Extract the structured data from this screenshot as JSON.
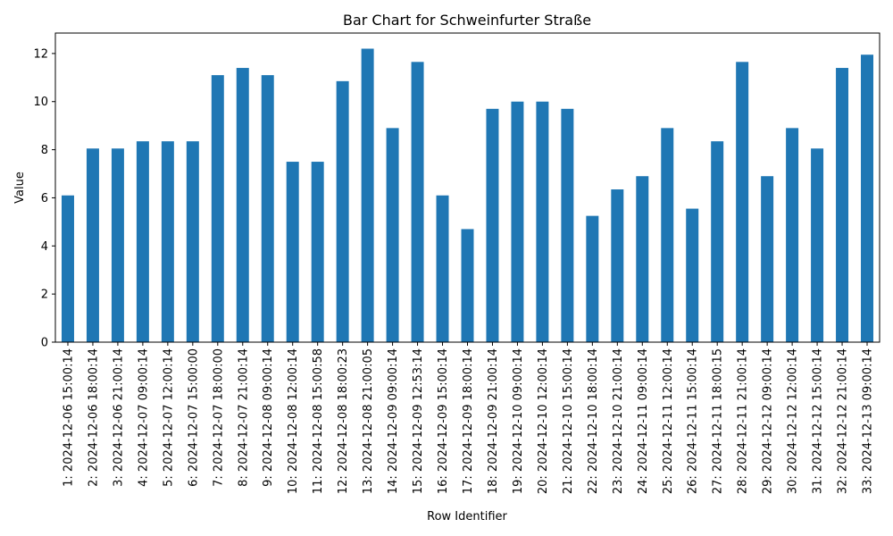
{
  "chart_data": {
    "type": "bar",
    "title": "Bar Chart for Schweinfurter Straße",
    "xlabel": "Row Identifier",
    "ylabel": "Value",
    "ylim": [
      0,
      12.85
    ],
    "yticks": [
      0,
      2,
      4,
      6,
      8,
      10,
      12
    ],
    "grid": false,
    "bar_color": "#1f77b4",
    "categories": [
      "1: 2024-12-06 15:00:14",
      "2: 2024-12-06 18:00:14",
      "3: 2024-12-06 21:00:14",
      "4: 2024-12-07 09:00:14",
      "5: 2024-12-07 12:00:14",
      "6: 2024-12-07 15:00:00",
      "7: 2024-12-07 18:00:00",
      "8: 2024-12-07 21:00:14",
      "9: 2024-12-08 09:00:14",
      "10: 2024-12-08 12:00:14",
      "11: 2024-12-08 15:00:58",
      "12: 2024-12-08 18:00:23",
      "13: 2024-12-08 21:00:05",
      "14: 2024-12-09 09:00:14",
      "15: 2024-12-09 12:53:14",
      "16: 2024-12-09 15:00:14",
      "17: 2024-12-09 18:00:14",
      "18: 2024-12-09 21:00:14",
      "19: 2024-12-10 09:00:14",
      "20: 2024-12-10 12:00:14",
      "21: 2024-12-10 15:00:14",
      "22: 2024-12-10 18:00:14",
      "23: 2024-12-10 21:00:14",
      "24: 2024-12-11 09:00:14",
      "25: 2024-12-11 12:00:14",
      "26: 2024-12-11 15:00:14",
      "27: 2024-12-11 18:00:15",
      "28: 2024-12-11 21:00:14",
      "29: 2024-12-12 09:00:14",
      "30: 2024-12-12 12:00:14",
      "31: 2024-12-12 15:00:14",
      "32: 2024-12-12 21:00:14",
      "33: 2024-12-13 09:00:14"
    ],
    "values": [
      6.1,
      8.05,
      8.05,
      8.35,
      8.35,
      8.35,
      11.1,
      11.4,
      11.1,
      7.5,
      7.5,
      10.85,
      12.2,
      8.9,
      11.65,
      6.1,
      4.7,
      9.7,
      10.0,
      10.0,
      9.7,
      5.25,
      6.35,
      6.9,
      8.9,
      5.55,
      8.35,
      11.65,
      6.9,
      8.9,
      8.05,
      11.4,
      11.95
    ]
  }
}
